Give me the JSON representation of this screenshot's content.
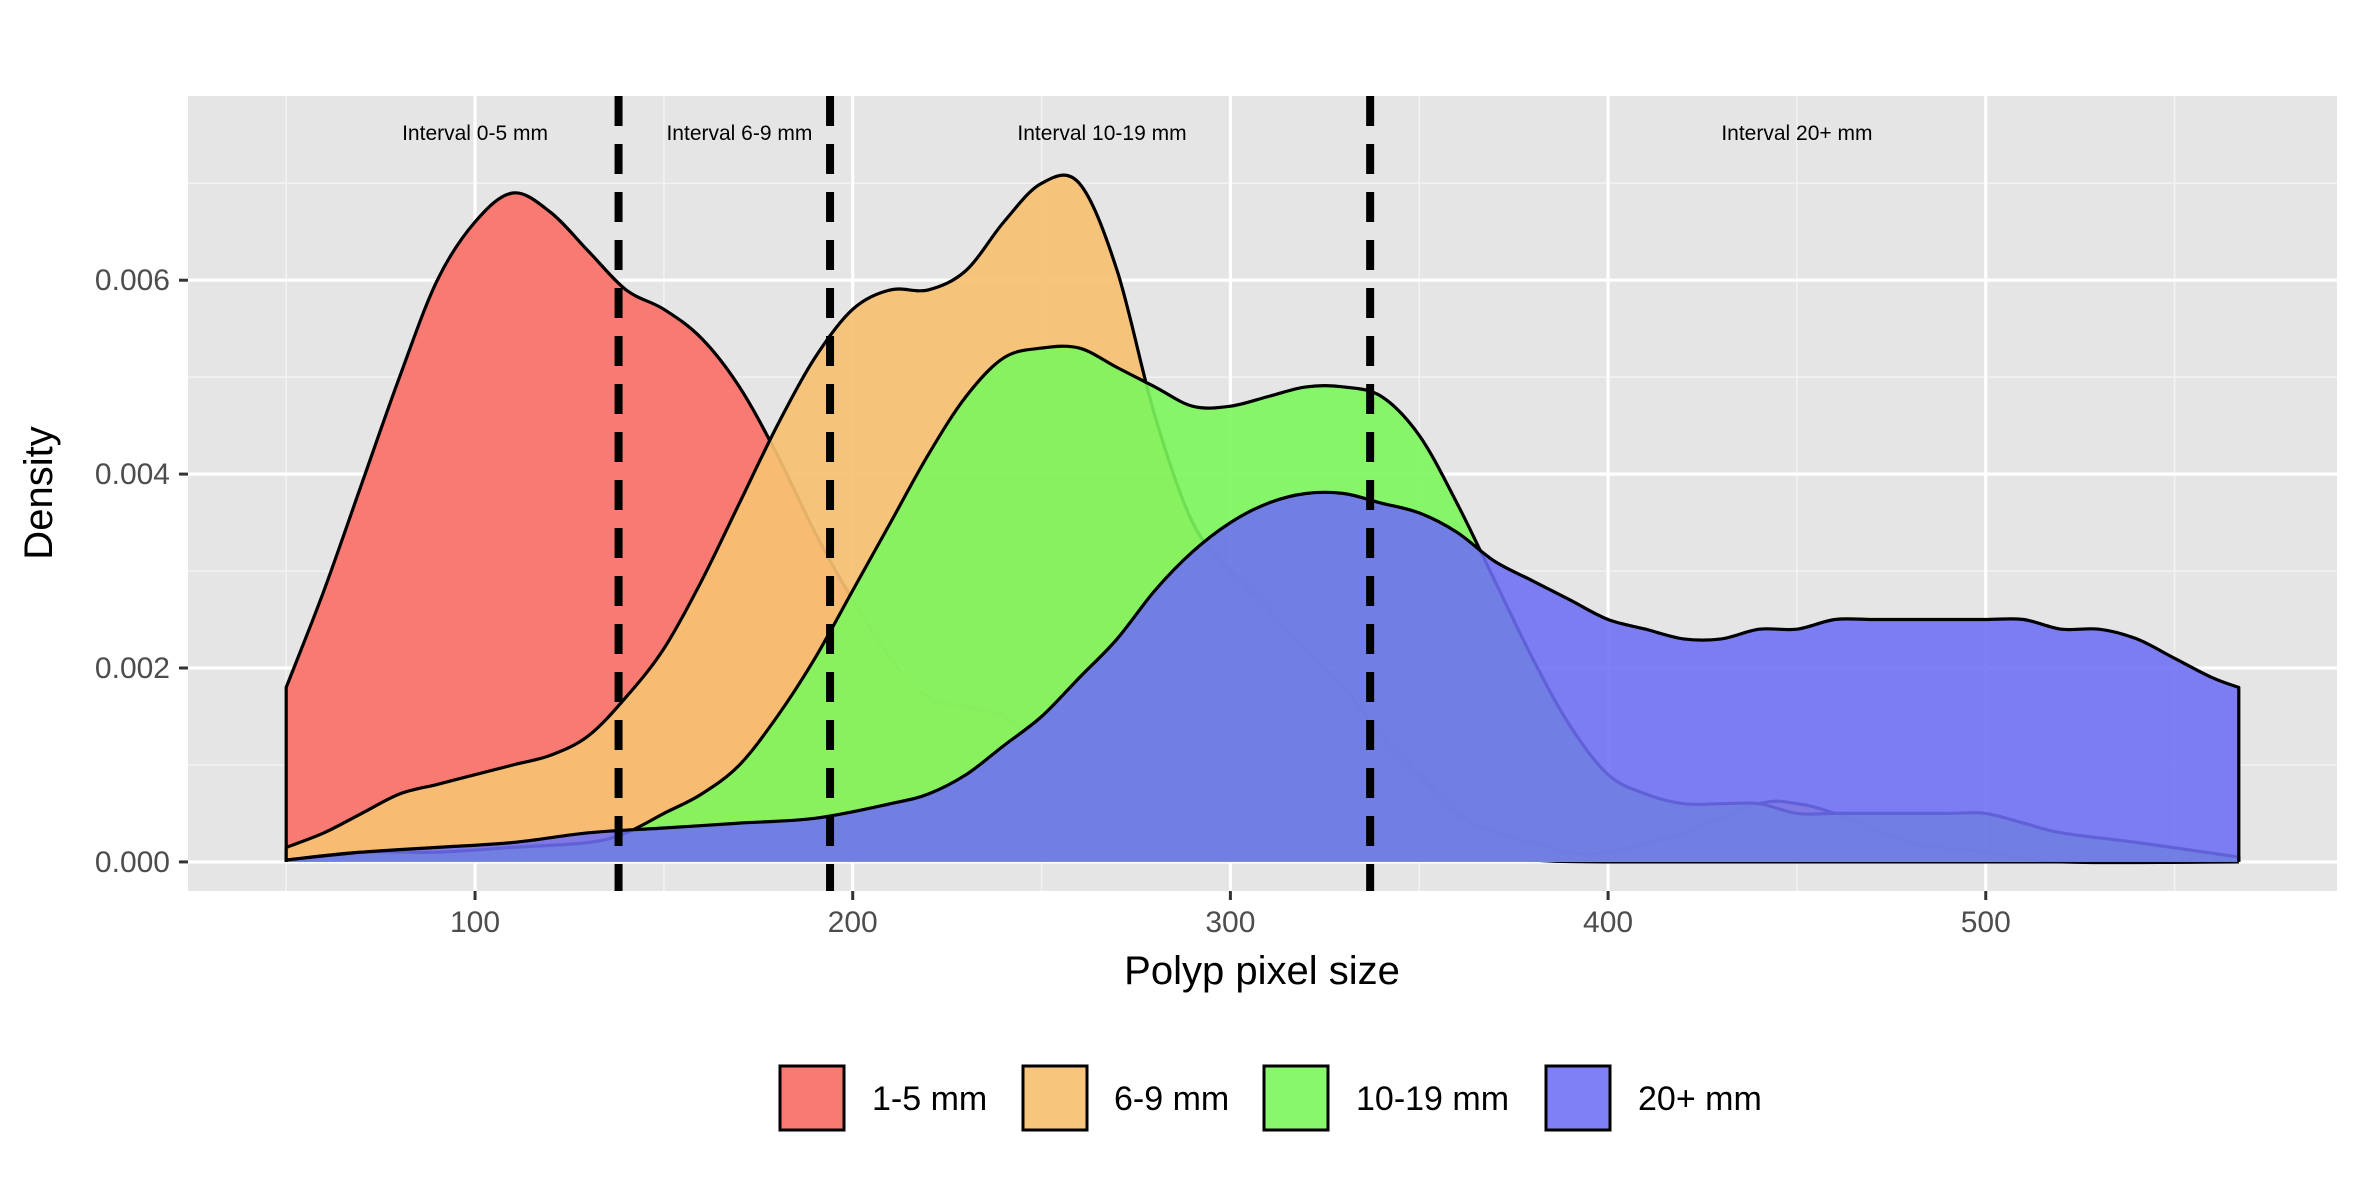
{
  "chart_data": {
    "type": "area",
    "xlabel": "Polyp pixel size",
    "ylabel": "Density",
    "xlim": [
      24,
      593
    ],
    "ylim": [
      -0.0003,
      0.0079
    ],
    "x_ticks": [
      100,
      200,
      300,
      400,
      500
    ],
    "x_tick_labels": [
      "100",
      "200",
      "300",
      "400",
      "500"
    ],
    "y_ticks": [
      0,
      0.002,
      0.004,
      0.006
    ],
    "y_tick_labels": [
      "0.000",
      "0.002",
      "0.004",
      "0.006"
    ],
    "grid": true,
    "legend_position": "bottom",
    "vlines": [
      138,
      194,
      337
    ],
    "annotations": [
      {
        "text": "Interval 0-5 mm",
        "x": 100
      },
      {
        "text": "Interval 6-9 mm",
        "x": 170
      },
      {
        "text": "Interval 10-19 mm",
        "x": 266
      },
      {
        "text": "Interval 20+ mm",
        "x": 450
      }
    ],
    "series": [
      {
        "name": "1-5 mm",
        "color": "#F8766D",
        "opacity": 0.97,
        "points": [
          [
            50,
            0.0018
          ],
          [
            60,
            0.0028
          ],
          [
            70,
            0.0039
          ],
          [
            80,
            0.005
          ],
          [
            90,
            0.006
          ],
          [
            100,
            0.0066
          ],
          [
            110,
            0.0069
          ],
          [
            120,
            0.0067
          ],
          [
            130,
            0.0063
          ],
          [
            140,
            0.0059
          ],
          [
            150,
            0.0057
          ],
          [
            160,
            0.0054
          ],
          [
            170,
            0.0049
          ],
          [
            180,
            0.0042
          ],
          [
            190,
            0.0034
          ],
          [
            200,
            0.0027
          ],
          [
            210,
            0.0021
          ],
          [
            220,
            0.0017
          ],
          [
            230,
            0.0016
          ],
          [
            240,
            0.0015
          ],
          [
            250,
            0.0012
          ],
          [
            260,
            0.0009
          ],
          [
            270,
            0.0007
          ],
          [
            280,
            0.0006
          ],
          [
            290,
            0.0005
          ],
          [
            300,
            0.0005
          ],
          [
            320,
            0.0004
          ],
          [
            340,
            0.0002
          ],
          [
            360,
            0.0001
          ],
          [
            380,
            2e-05
          ],
          [
            400,
            0.0
          ],
          [
            450,
            0.0
          ],
          [
            567,
            0.0
          ]
        ]
      },
      {
        "name": "6-9 mm",
        "color": "#F7C072",
        "opacity": 0.92,
        "points": [
          [
            50,
            0.00015
          ],
          [
            60,
            0.0003
          ],
          [
            70,
            0.0005
          ],
          [
            80,
            0.0007
          ],
          [
            90,
            0.0008
          ],
          [
            100,
            0.0009
          ],
          [
            110,
            0.001
          ],
          [
            120,
            0.0011
          ],
          [
            130,
            0.0013
          ],
          [
            140,
            0.0017
          ],
          [
            150,
            0.0022
          ],
          [
            160,
            0.0029
          ],
          [
            170,
            0.0037
          ],
          [
            180,
            0.0045
          ],
          [
            190,
            0.0052
          ],
          [
            200,
            0.0057
          ],
          [
            210,
            0.0059
          ],
          [
            220,
            0.0059
          ],
          [
            230,
            0.0061
          ],
          [
            240,
            0.0066
          ],
          [
            250,
            0.007
          ],
          [
            260,
            0.007
          ],
          [
            270,
            0.0061
          ],
          [
            280,
            0.0046
          ],
          [
            290,
            0.0035
          ],
          [
            300,
            0.003
          ],
          [
            310,
            0.0026
          ],
          [
            320,
            0.0022
          ],
          [
            330,
            0.0018
          ],
          [
            340,
            0.0013
          ],
          [
            350,
            0.0009
          ],
          [
            360,
            0.0005
          ],
          [
            370,
            0.0003
          ],
          [
            380,
            0.0002
          ],
          [
            390,
            0.0001
          ],
          [
            400,
            0.0001
          ],
          [
            420,
            0.0003
          ],
          [
            440,
            0.0006
          ],
          [
            450,
            0.0006
          ],
          [
            460,
            0.0005
          ],
          [
            480,
            0.0002
          ],
          [
            500,
            0.0001
          ],
          [
            520,
            0.0
          ],
          [
            567,
            0.0
          ]
        ]
      },
      {
        "name": "10-19 mm",
        "color": "#7CF65C",
        "opacity": 0.9,
        "points": [
          [
            50,
            2e-05
          ],
          [
            70,
            0.0001
          ],
          [
            90,
            0.0001
          ],
          [
            110,
            0.00015
          ],
          [
            130,
            0.0002
          ],
          [
            140,
            0.0003
          ],
          [
            150,
            0.0005
          ],
          [
            160,
            0.0007
          ],
          [
            170,
            0.001
          ],
          [
            180,
            0.0015
          ],
          [
            190,
            0.0021
          ],
          [
            200,
            0.0028
          ],
          [
            210,
            0.0035
          ],
          [
            220,
            0.0042
          ],
          [
            230,
            0.0048
          ],
          [
            240,
            0.0052
          ],
          [
            250,
            0.0053
          ],
          [
            260,
            0.0053
          ],
          [
            270,
            0.0051
          ],
          [
            280,
            0.0049
          ],
          [
            290,
            0.0047
          ],
          [
            300,
            0.0047
          ],
          [
            310,
            0.0048
          ],
          [
            320,
            0.0049
          ],
          [
            330,
            0.0049
          ],
          [
            340,
            0.0048
          ],
          [
            350,
            0.0044
          ],
          [
            360,
            0.0037
          ],
          [
            370,
            0.0029
          ],
          [
            380,
            0.0021
          ],
          [
            390,
            0.0014
          ],
          [
            400,
            0.0009
          ],
          [
            410,
            0.0007
          ],
          [
            420,
            0.0006
          ],
          [
            430,
            0.0006
          ],
          [
            440,
            0.0006
          ],
          [
            450,
            0.0005
          ],
          [
            460,
            0.0005
          ],
          [
            470,
            0.0005
          ],
          [
            480,
            0.0005
          ],
          [
            490,
            0.0005
          ],
          [
            500,
            0.0005
          ],
          [
            510,
            0.0004
          ],
          [
            520,
            0.0003
          ],
          [
            540,
            0.0002
          ],
          [
            567,
            5e-05
          ]
        ]
      },
      {
        "name": "20+ mm",
        "color": "#6E6EF5",
        "opacity": 0.88,
        "points": [
          [
            50,
            2e-05
          ],
          [
            70,
            0.0001
          ],
          [
            90,
            0.00015
          ],
          [
            110,
            0.0002
          ],
          [
            130,
            0.0003
          ],
          [
            150,
            0.00035
          ],
          [
            170,
            0.0004
          ],
          [
            190,
            0.00045
          ],
          [
            210,
            0.0006
          ],
          [
            220,
            0.0007
          ],
          [
            230,
            0.0009
          ],
          [
            240,
            0.0012
          ],
          [
            250,
            0.0015
          ],
          [
            260,
            0.0019
          ],
          [
            270,
            0.0023
          ],
          [
            280,
            0.0028
          ],
          [
            290,
            0.0032
          ],
          [
            300,
            0.0035
          ],
          [
            310,
            0.0037
          ],
          [
            320,
            0.0038
          ],
          [
            330,
            0.0038
          ],
          [
            340,
            0.0037
          ],
          [
            350,
            0.0036
          ],
          [
            360,
            0.0034
          ],
          [
            370,
            0.0031
          ],
          [
            380,
            0.0029
          ],
          [
            390,
            0.0027
          ],
          [
            400,
            0.0025
          ],
          [
            410,
            0.0024
          ],
          [
            420,
            0.0023
          ],
          [
            430,
            0.0023
          ],
          [
            440,
            0.0024
          ],
          [
            450,
            0.0024
          ],
          [
            460,
            0.0025
          ],
          [
            470,
            0.0025
          ],
          [
            480,
            0.0025
          ],
          [
            490,
            0.0025
          ],
          [
            500,
            0.0025
          ],
          [
            510,
            0.0025
          ],
          [
            520,
            0.0024
          ],
          [
            530,
            0.0024
          ],
          [
            540,
            0.0023
          ],
          [
            550,
            0.0021
          ],
          [
            560,
            0.0019
          ],
          [
            567,
            0.0018
          ]
        ]
      }
    ]
  }
}
